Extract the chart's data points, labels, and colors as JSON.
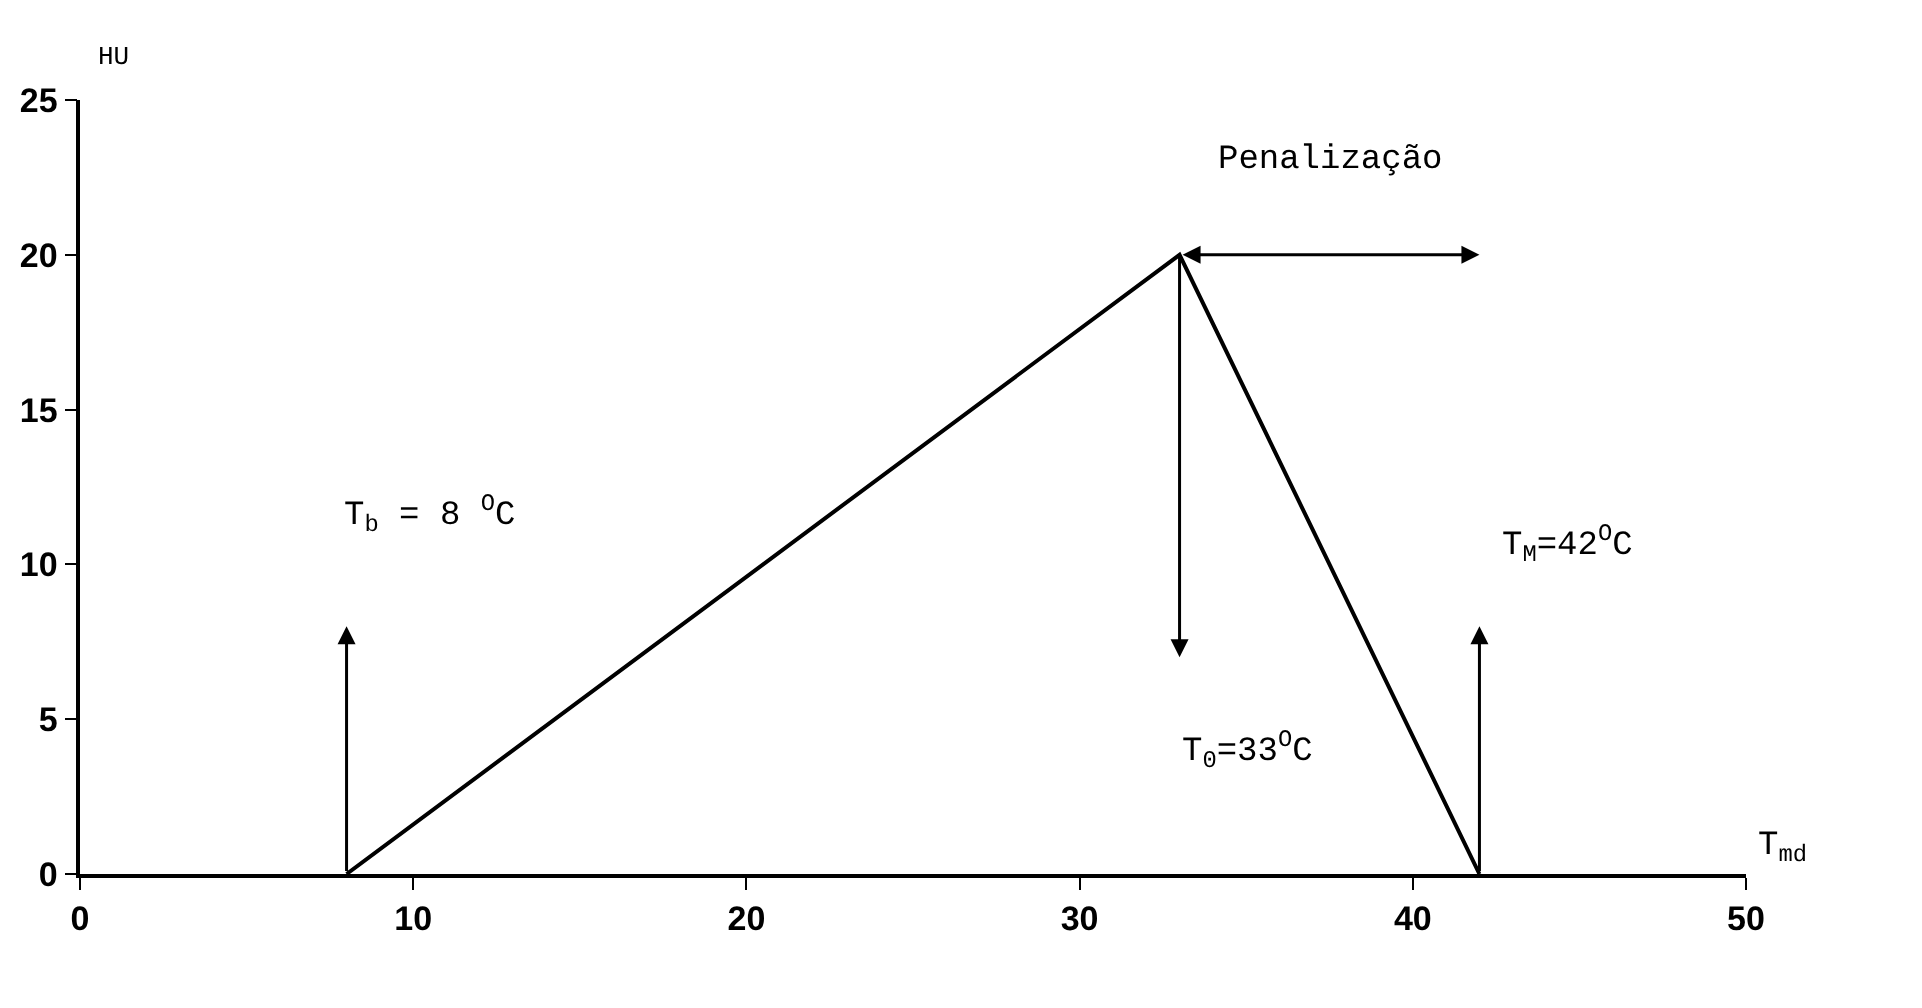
{
  "chart_data": {
    "type": "line",
    "xlabel": "T$_{md}$",
    "ylabel": "HU",
    "x": [
      8,
      33,
      42
    ],
    "series": [
      {
        "color": "#000000",
        "values": [
          0,
          20,
          0
        ]
      }
    ],
    "xlim": [
      0,
      50
    ],
    "xticks": [
      0,
      10,
      20,
      30,
      40,
      50
    ],
    "ylim": [
      0,
      25
    ],
    "yticks": [
      0,
      5,
      10,
      15,
      20,
      25
    ],
    "grid": false,
    "marker": "none",
    "line_style": "solid",
    "annotations": [
      "T$_{b}$ = 8 $^{O}$C",
      "T$_{0}$=33$^{O}$C",
      "T$_{M}$=42$^{O}$C",
      "Penalização"
    ]
  }
}
